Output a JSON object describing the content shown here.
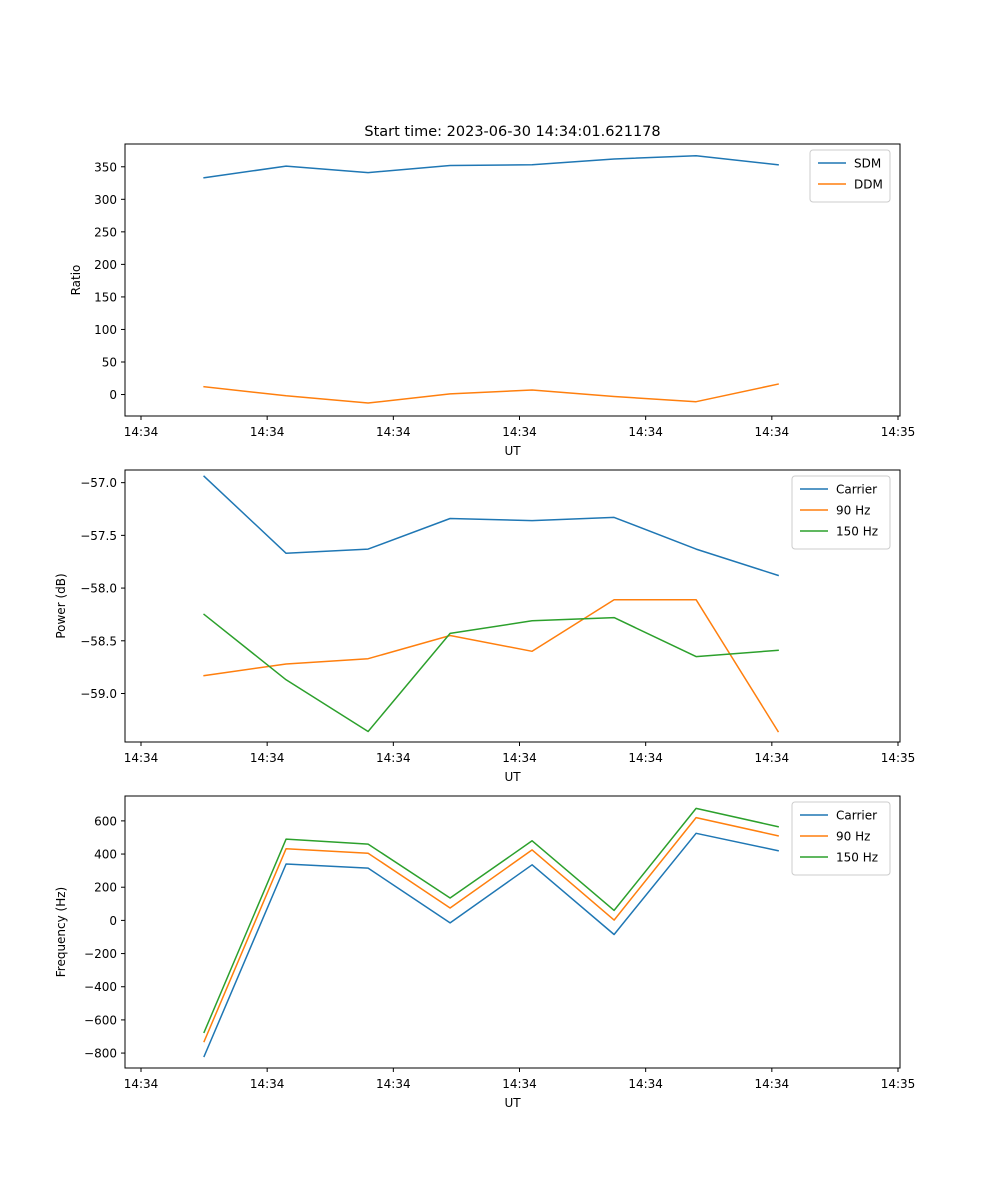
{
  "figure": {
    "title": "Start time: 2023-06-30 14:34:01.621178"
  },
  "chart_data": [
    {
      "type": "line",
      "title": "Start time: 2023-06-30 14:34:01.621178",
      "xlabel": "UT",
      "ylabel": "Ratio",
      "x_tick_labels": [
        "14:34",
        "14:34",
        "14:34",
        "14:34",
        "14:34",
        "14:34",
        "14:35"
      ],
      "y_ticks": [
        0,
        50,
        100,
        150,
        200,
        250,
        300,
        350
      ],
      "y_tick_labels": [
        "0",
        "50",
        "100",
        "150",
        "200",
        "250",
        "300",
        "350"
      ],
      "xlim": [
        0,
        6
      ],
      "ylim": [
        -33,
        385
      ],
      "x": [
        0.5,
        1.15,
        1.8,
        2.45,
        3.1,
        3.75,
        4.4,
        5.05
      ],
      "series": [
        {
          "name": "SDM",
          "color": "#1f77b4",
          "values": [
            333,
            351,
            341,
            352,
            353,
            362,
            367,
            353
          ]
        },
        {
          "name": "DDM",
          "color": "#ff7f0e",
          "values": [
            12,
            -2,
            -13,
            1,
            7,
            -3,
            -11,
            16
          ]
        }
      ],
      "legend": "top-right",
      "grid": false
    },
    {
      "type": "line",
      "xlabel": "UT",
      "ylabel": "Power (dB)",
      "x_tick_labels": [
        "14:34",
        "14:34",
        "14:34",
        "14:34",
        "14:34",
        "14:34",
        "14:35"
      ],
      "y_ticks": [
        -59.0,
        -58.5,
        -58.0,
        -57.5,
        -57.0
      ],
      "y_tick_labels": [
        "−59.0",
        "−58.5",
        "−58.0",
        "−57.5",
        "−57.0"
      ],
      "xlim": [
        0,
        6
      ],
      "ylim": [
        -59.46,
        -56.88
      ],
      "x": [
        0.5,
        1.15,
        1.8,
        2.45,
        3.1,
        3.75,
        4.4,
        5.05
      ],
      "series": [
        {
          "name": "Carrier",
          "color": "#1f77b4",
          "values": [
            -56.94,
            -57.67,
            -57.63,
            -57.34,
            -57.36,
            -57.33,
            -57.63,
            -57.88
          ]
        },
        {
          "name": "90 Hz",
          "color": "#ff7f0e",
          "values": [
            -58.83,
            -58.72,
            -58.67,
            -58.45,
            -58.6,
            -58.11,
            -58.11,
            -59.36
          ]
        },
        {
          "name": "150 Hz",
          "color": "#2ca02c",
          "values": [
            -58.25,
            -58.87,
            -59.36,
            -58.43,
            -58.31,
            -58.28,
            -58.65,
            -58.59
          ]
        }
      ],
      "legend": "top-right",
      "grid": false
    },
    {
      "type": "line",
      "xlabel": "UT",
      "ylabel": "Frequency (Hz)",
      "x_tick_labels": [
        "14:34",
        "14:34",
        "14:34",
        "14:34",
        "14:34",
        "14:34",
        "14:35"
      ],
      "y_ticks": [
        -800,
        -600,
        -400,
        -200,
        0,
        200,
        400,
        600
      ],
      "y_tick_labels": [
        "−800",
        "−600",
        "−400",
        "−200",
        "0",
        "200",
        "400",
        "600"
      ],
      "xlim": [
        0,
        6
      ],
      "ylim": [
        -890,
        750
      ],
      "x": [
        0.5,
        1.15,
        1.8,
        2.45,
        3.1,
        3.75,
        4.4,
        5.05
      ],
      "series": [
        {
          "name": "Carrier",
          "color": "#1f77b4",
          "values": [
            -820,
            340,
            315,
            -15,
            335,
            -85,
            525,
            420
          ]
        },
        {
          "name": "90 Hz",
          "color": "#ff7f0e",
          "values": [
            -730,
            432,
            405,
            75,
            425,
            2,
            620,
            510
          ]
        },
        {
          "name": "150 Hz",
          "color": "#2ca02c",
          "values": [
            -675,
            490,
            460,
            135,
            480,
            60,
            675,
            565
          ]
        }
      ],
      "legend": "top-right",
      "grid": false
    }
  ]
}
